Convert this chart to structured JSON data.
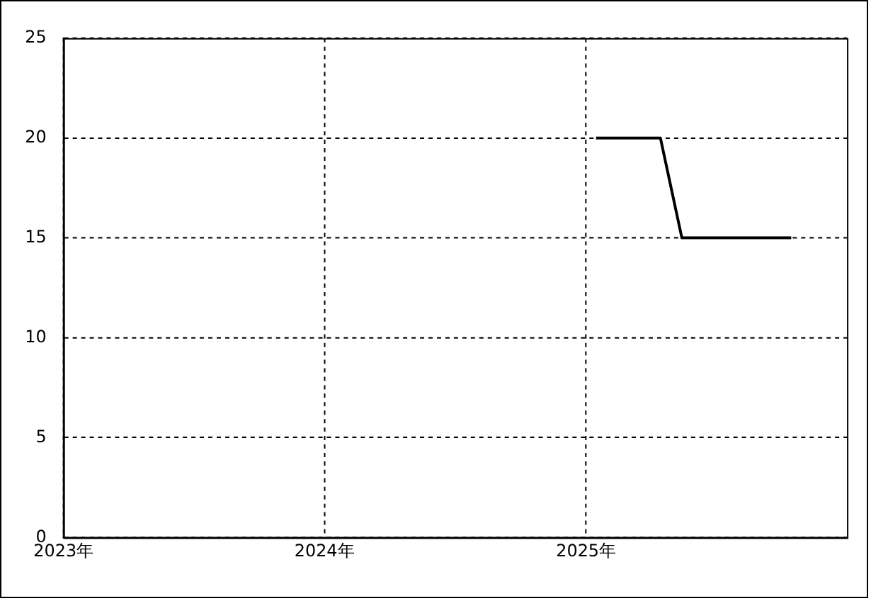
{
  "chart_data": {
    "type": "line",
    "x": [
      "2025-01-15",
      "2025-04-15",
      "2025-05-15",
      "2025-10-15"
    ],
    "series": [
      {
        "color": "#000000",
        "values": [
          20,
          20,
          15,
          15
        ]
      }
    ],
    "xlim": [
      "2023-01-01",
      "2026-01-01"
    ],
    "xticks": [
      {
        "value": "2023-01-01",
        "label": "2023年"
      },
      {
        "value": "2024-01-01",
        "label": "2024年"
      },
      {
        "value": "2025-01-01",
        "label": "2025年"
      }
    ],
    "ylim": [
      0,
      25
    ],
    "yticks": [
      0,
      5,
      10,
      15,
      20,
      25
    ],
    "grid": true,
    "legend": false,
    "marker": "none",
    "line_style": "solid"
  }
}
